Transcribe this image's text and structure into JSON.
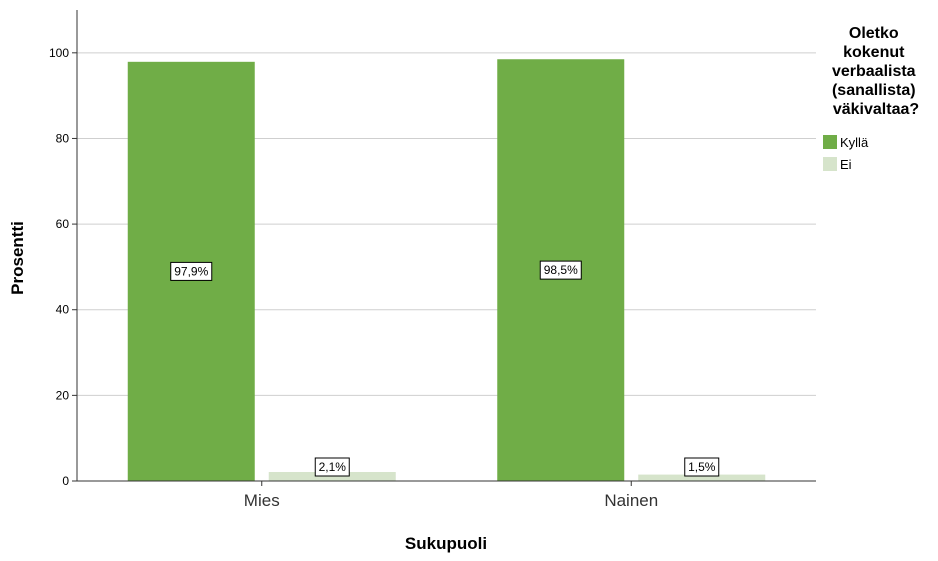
{
  "chart_data": {
    "type": "bar",
    "categories": [
      "Mies",
      "Nainen"
    ],
    "series": [
      {
        "name": "Kyllä",
        "color": "#70ad47",
        "values": [
          97.9,
          98.5
        ],
        "labels": [
          "97,9%",
          "98,5%"
        ]
      },
      {
        "name": "Ei",
        "color": "#d6e4cb",
        "values": [
          2.1,
          1.5
        ],
        "labels": [
          "2,1%",
          "1,5%"
        ]
      }
    ],
    "xlabel": "Sukupuoli",
    "ylabel": "Prosentti",
    "ylim": [
      0,
      110
    ],
    "yticks": [
      0,
      20,
      40,
      60,
      80,
      100
    ],
    "grid": true,
    "legend": {
      "title_lines": [
        "Oletko",
        "kokenut",
        "verbaalista",
        "(sanallista)",
        "väkivaltaa?"
      ],
      "position": "right"
    }
  }
}
